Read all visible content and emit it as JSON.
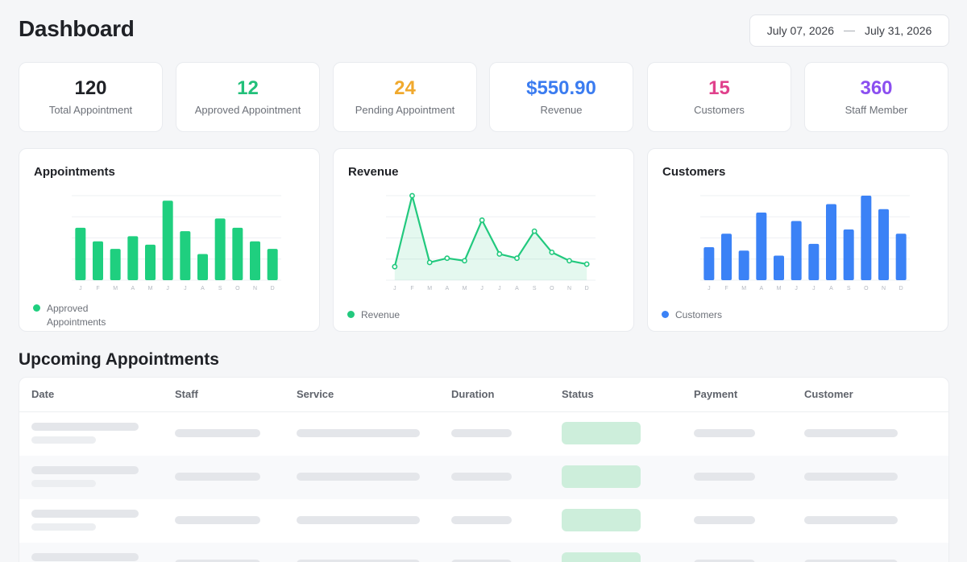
{
  "header": {
    "title": "Dashboard",
    "date_from": "July 07, 2026",
    "date_to": "July 31, 2026"
  },
  "stats": [
    {
      "value": "120",
      "label": "Total Appointment",
      "color": "#1f2126"
    },
    {
      "value": "12",
      "label": "Approved Appointment",
      "color": "#22c07a"
    },
    {
      "value": "24",
      "label": "Pending Appointment",
      "color": "#f0a92e"
    },
    {
      "value": "$550.90",
      "label": "Revenue",
      "color": "#3b7cf0"
    },
    {
      "value": "15",
      "label": "Customers",
      "color": "#e0418c"
    },
    {
      "value": "360",
      "label": "Staff Member",
      "color": "#8b4ff0"
    }
  ],
  "charts": {
    "appointments": {
      "title": "Appointments",
      "legend": "Approved Appointments",
      "color": "#1fcf7f"
    },
    "revenue": {
      "title": "Revenue",
      "legend": "Revenue",
      "color": "#22c97e"
    },
    "customers": {
      "title": "Customers",
      "legend": "Customers",
      "color": "#3b82f6"
    }
  },
  "chart_data": [
    {
      "type": "bar",
      "title": "Appointments",
      "categories": [
        "J",
        "F",
        "M",
        "A",
        "M",
        "J",
        "J",
        "A",
        "S",
        "O",
        "N",
        "D"
      ],
      "series": [
        {
          "name": "Approved Appointments",
          "values": [
            62,
            46,
            37,
            52,
            42,
            94,
            58,
            31,
            73,
            62,
            46,
            37
          ]
        }
      ],
      "ylim": [
        0,
        100
      ],
      "grid": true,
      "legend_position": "bottom-left"
    },
    {
      "type": "area",
      "title": "Revenue",
      "categories": [
        "J",
        "F",
        "M",
        "A",
        "M",
        "J",
        "J",
        "A",
        "S",
        "O",
        "N",
        "D"
      ],
      "series": [
        {
          "name": "Revenue",
          "values": [
            16,
            100,
            21,
            26,
            23,
            71,
            31,
            26,
            58,
            33,
            23,
            19
          ]
        }
      ],
      "ylim": [
        0,
        100
      ],
      "grid": true,
      "legend_position": "bottom-left"
    },
    {
      "type": "bar",
      "title": "Customers",
      "categories": [
        "J",
        "F",
        "M",
        "A",
        "M",
        "J",
        "J",
        "A",
        "S",
        "O",
        "N",
        "D"
      ],
      "series": [
        {
          "name": "Customers",
          "values": [
            39,
            55,
            35,
            80,
            29,
            70,
            43,
            90,
            60,
            100,
            84,
            55
          ]
        }
      ],
      "ylim": [
        0,
        100
      ],
      "grid": true,
      "legend_position": "bottom-left"
    }
  ],
  "upcoming": {
    "title": "Upcoming Appointments",
    "columns": [
      "Date",
      "Staff",
      "Service",
      "Duration",
      "Status",
      "Payment",
      "Customer"
    ],
    "row_count": 4,
    "status_color": "#cdeedb"
  }
}
